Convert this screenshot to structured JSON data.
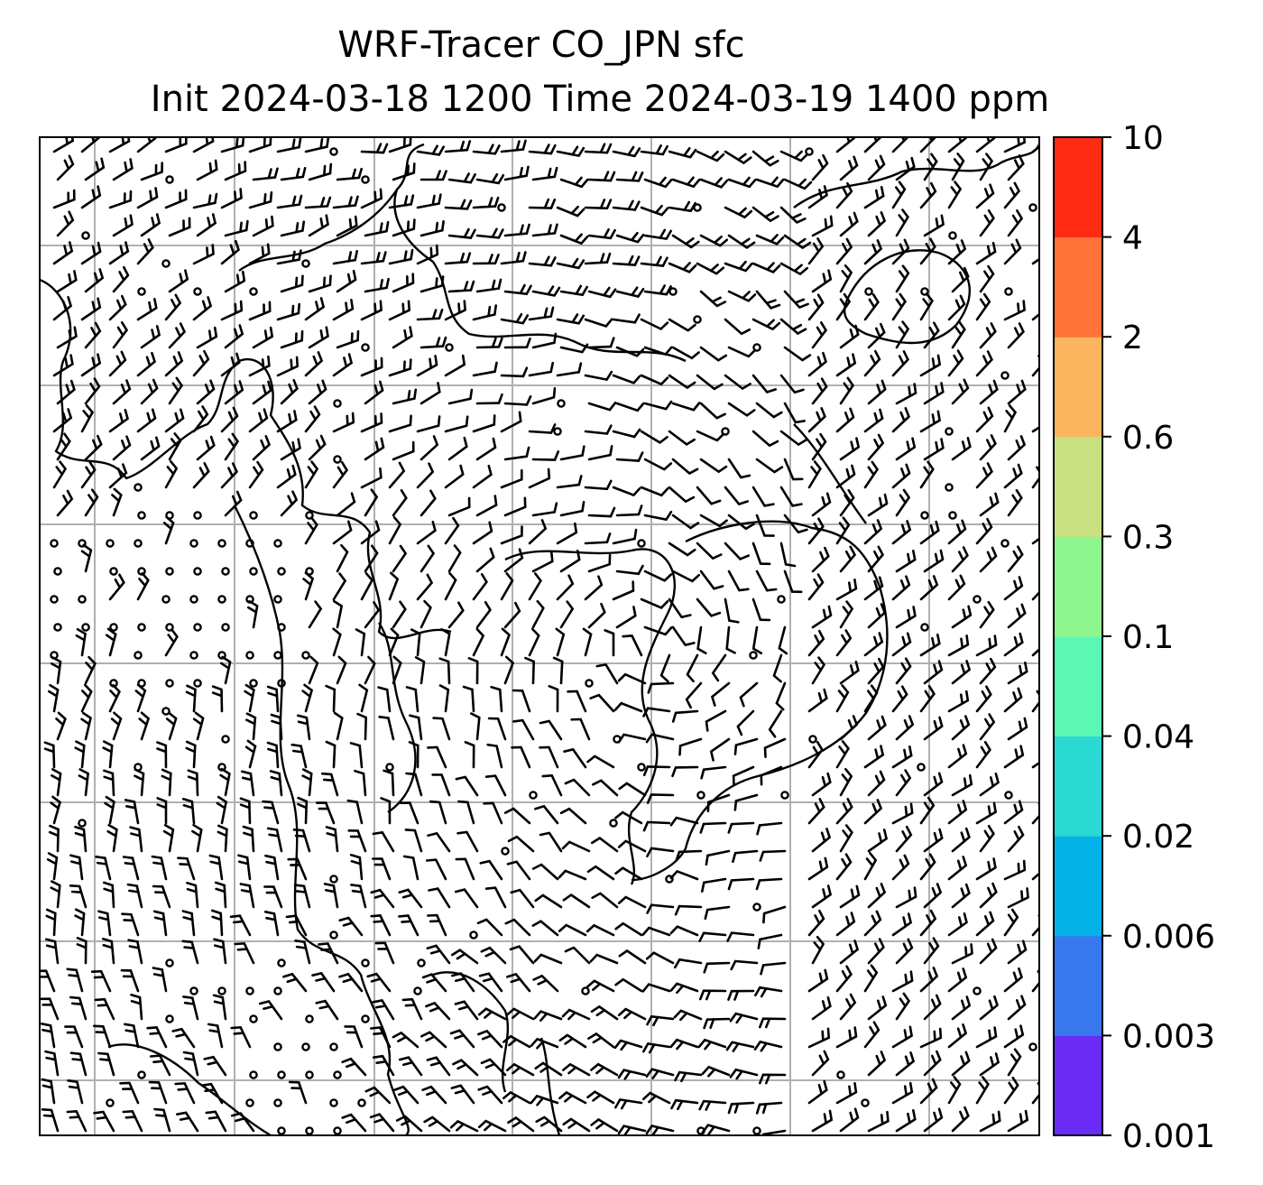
{
  "title": {
    "line1": "WRF-Tracer CO_JPN sfc",
    "line2": "Init 2024-03-18 1200 Time 2024-03-19 1400 ppm"
  },
  "colorbar": {
    "levels": [
      "0.001",
      "0.003",
      "0.006",
      "0.02",
      "0.04",
      "0.1",
      "0.3",
      "0.6",
      "2",
      "4",
      "10"
    ],
    "colors": [
      "#6a2cf5",
      "#3778ef",
      "#03b3e8",
      "#2ad9d2",
      "#5cf7b5",
      "#8ff58f",
      "#c9e081",
      "#fcb55f",
      "#ff7238",
      "#ff2a14"
    ]
  },
  "map": {
    "grid": "on",
    "wind_barbs": "surface wind barbs",
    "coastlines": "black"
  }
}
